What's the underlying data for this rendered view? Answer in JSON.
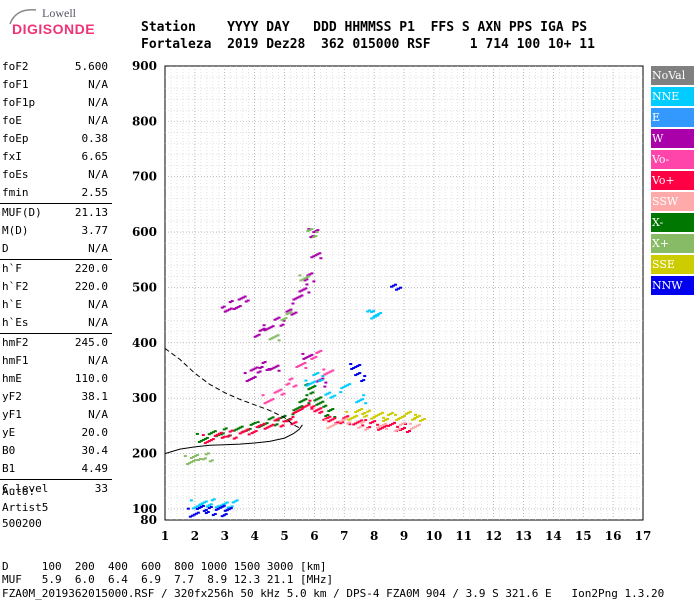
{
  "logo": {
    "top": "Lowell",
    "main": "DIGISONDE"
  },
  "header": {
    "line1": "Station    YYYY DAY   DDD HHMMSS P1  FFS S AXN PPS IGA PS",
    "line2": "Fortaleza  2019 Dez28  362 015000 RSF     1 714 100 10+ 11"
  },
  "params": [
    [
      {
        "name": "foF2",
        "value": "5.600"
      },
      {
        "name": "foF1",
        "value": "N/A"
      },
      {
        "name": "foF1p",
        "value": "N/A"
      },
      {
        "name": "foE",
        "value": "N/A"
      },
      {
        "name": "foEp",
        "value": "0.38"
      },
      {
        "name": "fxI",
        "value": "6.65"
      },
      {
        "name": "foEs",
        "value": "N/A"
      },
      {
        "name": "fmin",
        "value": "2.55"
      }
    ],
    [
      {
        "name": "MUF(D)",
        "value": "21.13"
      },
      {
        "name": "M(D)",
        "value": "3.77"
      },
      {
        "name": "D",
        "value": "N/A"
      }
    ],
    [
      {
        "name": "h`F",
        "value": "220.0"
      },
      {
        "name": "h`F2",
        "value": "220.0"
      },
      {
        "name": "h`E",
        "value": "N/A"
      },
      {
        "name": "h`Es",
        "value": "N/A"
      }
    ],
    [
      {
        "name": "hmF2",
        "value": "245.0"
      },
      {
        "name": "hmF1",
        "value": "N/A"
      },
      {
        "name": "hmE",
        "value": "110.0"
      },
      {
        "name": "yF2",
        "value": "38.1"
      },
      {
        "name": "yF1",
        "value": "N/A"
      },
      {
        "name": "yE",
        "value": "20.0"
      },
      {
        "name": "B0",
        "value": "30.4"
      },
      {
        "name": "B1",
        "value": "4.49"
      }
    ],
    [
      {
        "name": "C-level",
        "value": "33"
      }
    ]
  ],
  "auto": {
    "line1": "Auto:",
    "line2": "Artist5",
    "line3": "500200"
  },
  "legend": [
    {
      "label": "NoVal",
      "color": "#808080"
    },
    {
      "label": "NNE",
      "color": "#00ccff"
    },
    {
      "label": "E",
      "color": "#3399ff"
    },
    {
      "label": "W",
      "color": "#aa00aa"
    },
    {
      "label": "Vo-",
      "color": "#ff44aa"
    },
    {
      "label": "Vo+",
      "color": "#ff0044"
    },
    {
      "label": "SSW",
      "color": "#ffaaaa"
    },
    {
      "label": "X-",
      "color": "#007700"
    },
    {
      "label": "X+",
      "color": "#88bb66"
    },
    {
      "label": "SSE",
      "color": "#cccc00"
    },
    {
      "label": "NNW",
      "color": "#0000ee"
    }
  ],
  "footer": {
    "line1": "D     100  200  400  600  800 1000 1500 3000 [km]",
    "line2": "MUF   5.9  6.0  6.4  6.9  7.7  8.9 12.3 21.1 [MHz]",
    "line3": "FZA0M_2019362015000.RSF / 320fx256h 50 kHz 5.0 km / DPS-4 FZA0M 904 / 3.9 S 321.6 E   Ion2Png 1.3.20"
  },
  "chart_data": {
    "type": "scatter",
    "xlim": [
      1,
      17
    ],
    "ylim": [
      80,
      900
    ],
    "xticks": [
      "1",
      "2",
      "3",
      "4",
      "5",
      "6",
      "7",
      "8",
      "9",
      "10",
      "11",
      "12",
      "13",
      "14",
      "15",
      "16",
      "17"
    ],
    "yticks": [
      "100",
      "200",
      "300",
      "400",
      "500",
      "600",
      "700",
      "800",
      "900"
    ],
    "ytick_bottom": "80",
    "grid": true,
    "legend_position": "right",
    "series": [
      {
        "name": "X-",
        "color": "#007700",
        "points": [
          [
            2.2,
            230
          ],
          [
            2.6,
            235
          ],
          [
            3.0,
            240
          ],
          [
            3.4,
            245
          ],
          [
            3.8,
            250
          ],
          [
            4.2,
            255
          ],
          [
            4.6,
            260
          ],
          [
            5.0,
            268
          ],
          [
            5.4,
            280
          ],
          [
            5.6,
            300
          ],
          [
            5.8,
            320
          ],
          [
            6.0,
            305
          ],
          [
            6.2,
            290
          ],
          [
            6.5,
            275
          ]
        ]
      },
      {
        "name": "Vo+",
        "color": "#ff0044",
        "points": [
          [
            2.4,
            228
          ],
          [
            2.8,
            232
          ],
          [
            3.2,
            236
          ],
          [
            3.6,
            240
          ],
          [
            4.0,
            246
          ],
          [
            4.4,
            252
          ],
          [
            4.8,
            258
          ],
          [
            5.2,
            262
          ],
          [
            5.4,
            275
          ],
          [
            5.7,
            290
          ],
          [
            6.0,
            280
          ],
          [
            6.3,
            270
          ],
          [
            6.6,
            260
          ],
          [
            7.0,
            262
          ],
          [
            7.4,
            258
          ],
          [
            7.8,
            255
          ],
          [
            8.2,
            252
          ],
          [
            8.6,
            250
          ],
          [
            9.0,
            248
          ]
        ]
      },
      {
        "name": "W",
        "color": "#aa00aa",
        "points": [
          [
            3.8,
            340
          ],
          [
            4.0,
            350
          ],
          [
            4.3,
            360
          ],
          [
            4.6,
            355
          ],
          [
            4.1,
            420
          ],
          [
            4.4,
            430
          ],
          [
            4.8,
            440
          ],
          [
            5.2,
            460
          ],
          [
            5.4,
            480
          ],
          [
            5.6,
            500
          ],
          [
            3.0,
            460
          ],
          [
            3.3,
            470
          ],
          [
            3.6,
            480
          ],
          [
            5.8,
            520
          ],
          [
            6.0,
            560
          ],
          [
            5.9,
            600
          ],
          [
            5.7,
            380
          ],
          [
            6.2,
            330
          ]
        ]
      },
      {
        "name": "SSE",
        "color": "#cccc00",
        "points": [
          [
            7.2,
            270
          ],
          [
            7.5,
            275
          ],
          [
            7.8,
            272
          ],
          [
            8.1,
            270
          ],
          [
            8.4,
            268
          ],
          [
            8.8,
            268
          ],
          [
            9.2,
            270
          ],
          [
            9.5,
            268
          ]
        ]
      },
      {
        "name": "NNE",
        "color": "#00ccff",
        "points": [
          [
            2.0,
            110
          ],
          [
            2.3,
            108
          ],
          [
            2.6,
            112
          ],
          [
            2.9,
            108
          ],
          [
            3.2,
            110
          ],
          [
            5.8,
            330
          ],
          [
            6.1,
            340
          ],
          [
            6.5,
            310
          ],
          [
            7.0,
            320
          ],
          [
            7.5,
            300
          ],
          [
            8.0,
            452
          ],
          [
            7.9,
            453
          ]
        ]
      },
      {
        "name": "NNW",
        "color": "#0000ee",
        "points": [
          [
            1.9,
            95
          ],
          [
            2.2,
            100
          ],
          [
            2.5,
            98
          ],
          [
            2.8,
            102
          ],
          [
            3.0,
            96
          ],
          [
            7.3,
            360
          ],
          [
            7.5,
            340
          ],
          [
            8.7,
            505
          ]
        ]
      },
      {
        "name": "SSW",
        "color": "#ffaaaa",
        "points": [
          [
            6.5,
            255
          ],
          [
            7.0,
            258
          ],
          [
            7.6,
            252
          ],
          [
            8.2,
            250
          ],
          [
            8.8,
            250
          ],
          [
            9.3,
            252
          ]
        ]
      },
      {
        "name": "X+",
        "color": "#88bb66",
        "points": [
          [
            1.8,
            190
          ],
          [
            2.0,
            192
          ],
          [
            2.4,
            195
          ],
          [
            4.6,
            410
          ],
          [
            5.0,
            450
          ],
          [
            5.6,
            520
          ],
          [
            5.9,
            600
          ]
        ]
      },
      {
        "name": "Vo-",
        "color": "#ff44aa",
        "points": [
          [
            4.4,
            300
          ],
          [
            4.8,
            310
          ],
          [
            5.2,
            330
          ],
          [
            5.5,
            360
          ],
          [
            6.0,
            380
          ],
          [
            6.4,
            350
          ]
        ]
      }
    ],
    "profile": [
      [
        1.0,
        390
      ],
      [
        1.5,
        370
      ],
      [
        2.0,
        345
      ],
      [
        2.5,
        325
      ],
      [
        3.0,
        310
      ],
      [
        3.5,
        298
      ],
      [
        4.0,
        288
      ],
      [
        4.5,
        278
      ],
      [
        5.0,
        265
      ],
      [
        5.3,
        252
      ],
      [
        5.55,
        245
      ]
    ],
    "trace": [
      [
        1.0,
        200
      ],
      [
        1.5,
        208
      ],
      [
        2.0,
        212
      ],
      [
        2.5,
        215
      ],
      [
        3.0,
        216
      ],
      [
        3.5,
        217
      ],
      [
        4.0,
        219
      ],
      [
        4.5,
        222
      ],
      [
        5.0,
        228
      ],
      [
        5.3,
        236
      ],
      [
        5.5,
        244
      ],
      [
        5.6,
        252
      ]
    ]
  }
}
